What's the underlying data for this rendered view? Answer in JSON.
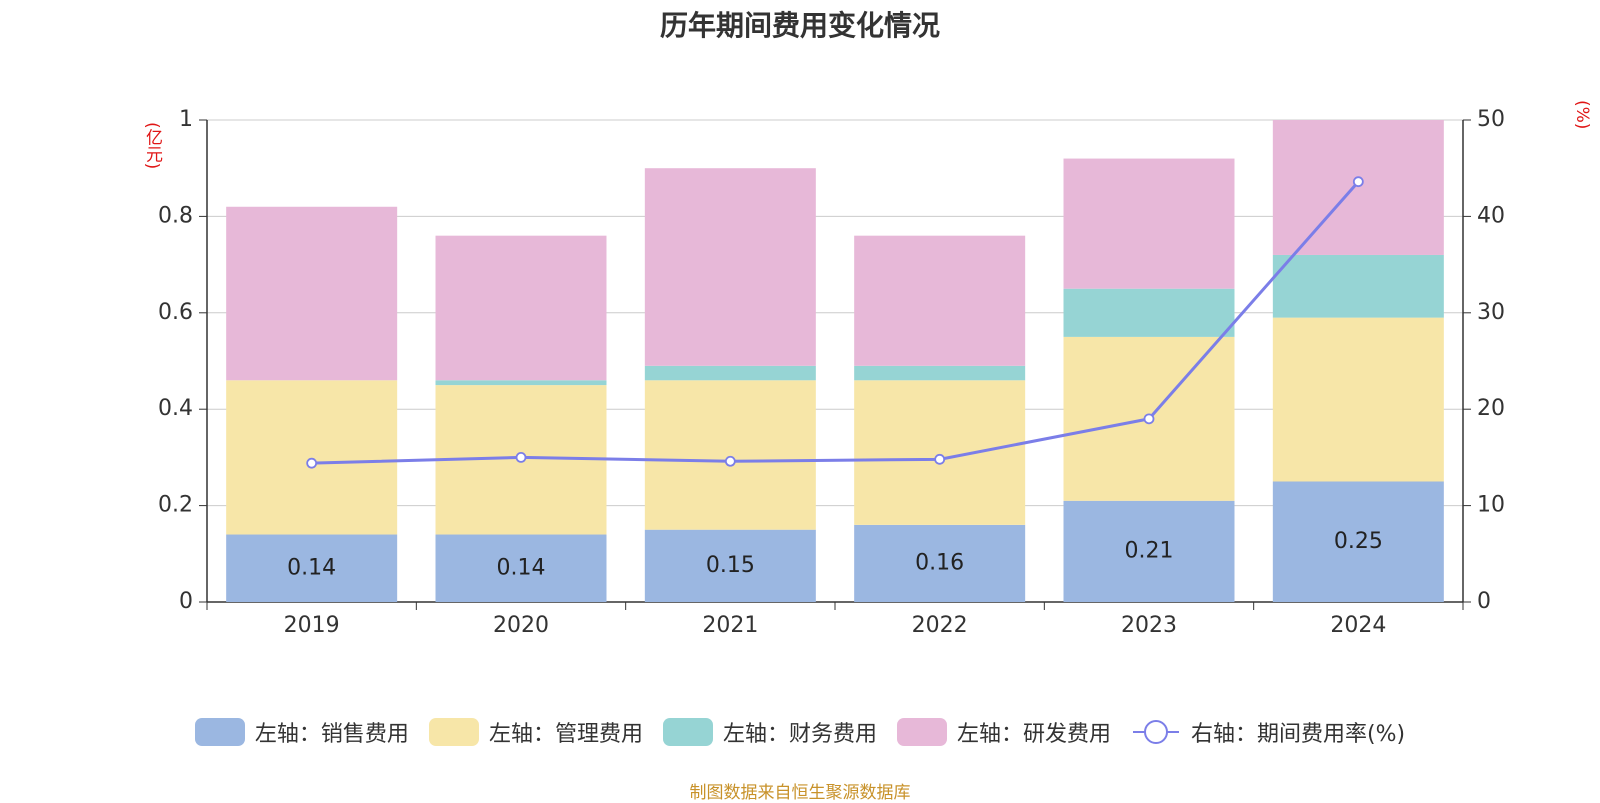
{
  "title": "历年期间费用变化情况",
  "left_unit": "(亿元)",
  "right_unit": "(%)",
  "source": "制图数据来自恒生聚源数据库",
  "chart_data": {
    "type": "bar",
    "stacked": true,
    "categories": [
      "2019",
      "2020",
      "2021",
      "2022",
      "2023",
      "2024"
    ],
    "y_left": {
      "label": "(亿元)",
      "ylim": [
        0,
        1
      ],
      "ticks": [
        0,
        0.2,
        0.4,
        0.6,
        0.8,
        1
      ]
    },
    "y_right": {
      "label": "(%)",
      "ylim": [
        0,
        50
      ],
      "ticks": [
        0,
        10,
        20,
        30,
        40,
        50
      ]
    },
    "grid": true,
    "legend_position": "bottom",
    "series": [
      {
        "name": "左轴：销售费用",
        "axis": "left",
        "color": "#9bb7e1",
        "values": [
          0.14,
          0.14,
          0.15,
          0.16,
          0.21,
          0.25
        ],
        "show_labels": true
      },
      {
        "name": "左轴：管理费用",
        "axis": "left",
        "color": "#f7e6a8",
        "values": [
          0.32,
          0.31,
          0.31,
          0.3,
          0.34,
          0.34
        ]
      },
      {
        "name": "左轴：财务费用",
        "axis": "left",
        "color": "#96d4d4",
        "values": [
          0.0,
          0.01,
          0.03,
          0.03,
          0.1,
          0.13
        ]
      },
      {
        "name": "左轴：研发费用",
        "axis": "left",
        "color": "#e7b8d8",
        "values": [
          0.36,
          0.3,
          0.41,
          0.27,
          0.27,
          0.28
        ]
      },
      {
        "name": "右轴：期间费用率(%)",
        "axis": "right",
        "type": "line",
        "color": "#7b7ee8",
        "values": [
          14.4,
          15.0,
          14.6,
          14.8,
          19.0,
          43.6
        ]
      }
    ]
  }
}
